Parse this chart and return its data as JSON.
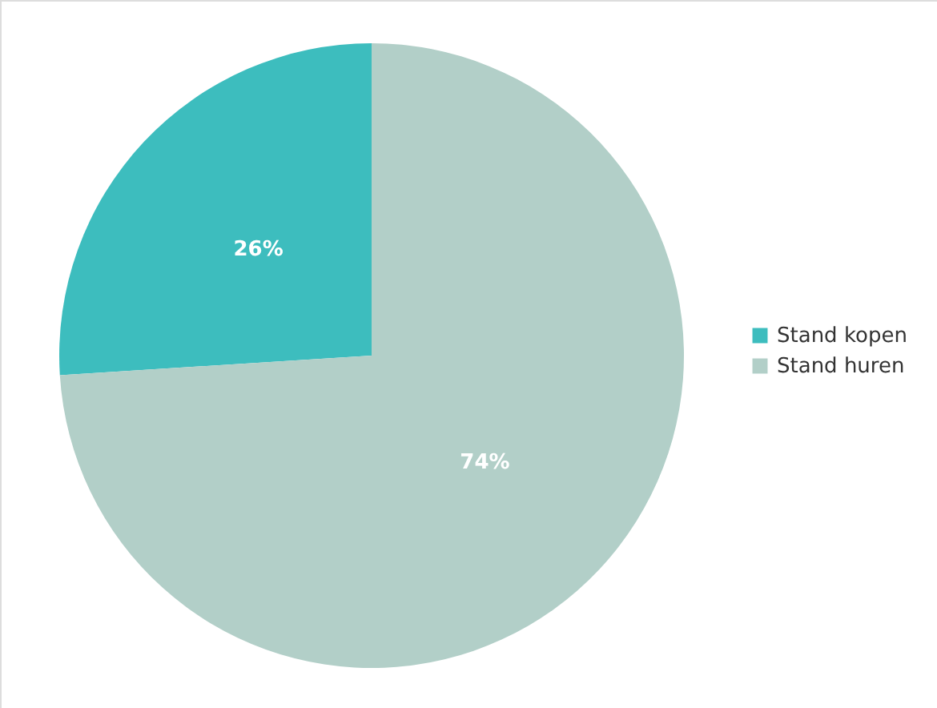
{
  "chart_data": {
    "type": "pie",
    "categories": [
      "Stand kopen",
      "Stand huren"
    ],
    "values": [
      26,
      74
    ],
    "colors": [
      "#3dbdbe",
      "#b2cfc8"
    ],
    "value_labels": [
      "26%",
      "74%"
    ],
    "legend": "right"
  }
}
